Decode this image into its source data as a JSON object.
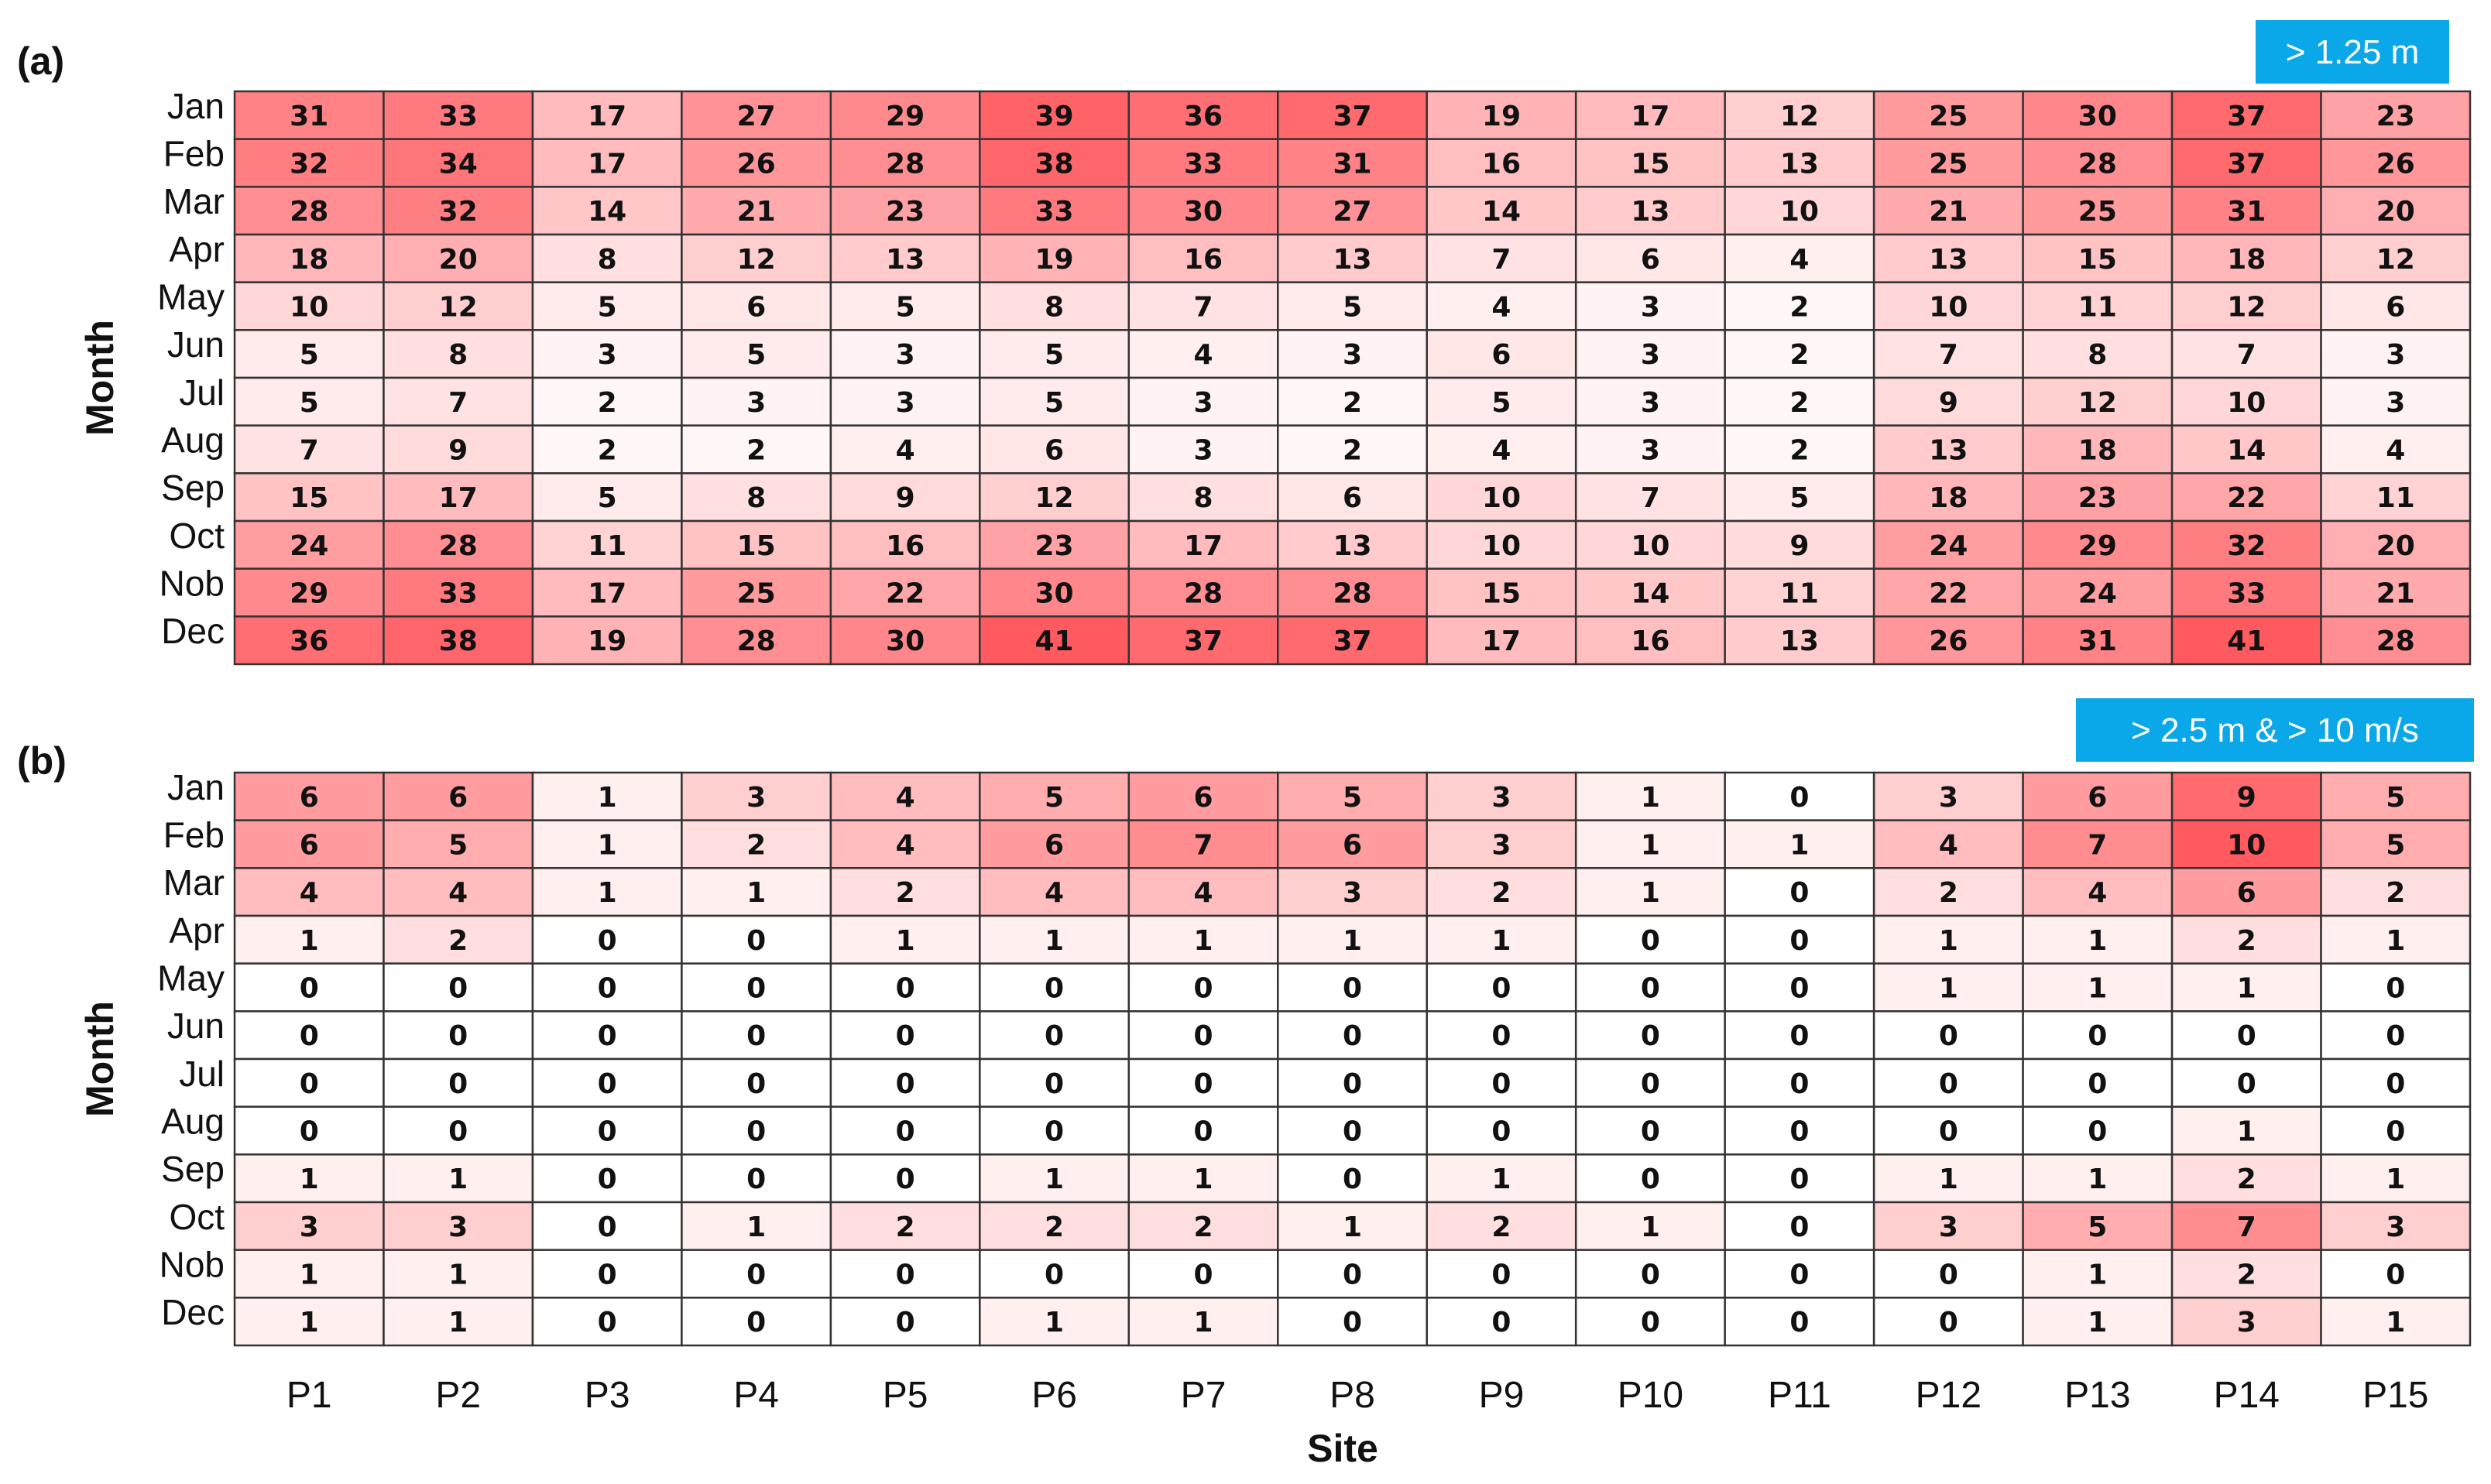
{
  "x_axis_title": "Site",
  "y_axis_title": "Month",
  "sites": [
    "P1",
    "P2",
    "P3",
    "P4",
    "P5",
    "P6",
    "P7",
    "P8",
    "P9",
    "P10",
    "P11",
    "P12",
    "P13",
    "P14",
    "P15"
  ],
  "months": [
    "Jan",
    "Feb",
    "Mar",
    "Apr",
    "May",
    "Jun",
    "Jul",
    "Aug",
    "Sep",
    "Oct",
    "Nob",
    "Dec"
  ],
  "colors": {
    "low": "#ffffff",
    "high": "#ff5a5f",
    "badge": "#0aa8e8",
    "grid": "#333333"
  },
  "chart_data": [
    {
      "type": "heatmap",
      "panel": "(a)",
      "threshold": "> 1.25 m",
      "x": [
        "P1",
        "P2",
        "P3",
        "P4",
        "P5",
        "P6",
        "P7",
        "P8",
        "P9",
        "P10",
        "P11",
        "P12",
        "P13",
        "P14",
        "P15"
      ],
      "y": [
        "Jan",
        "Feb",
        "Mar",
        "Apr",
        "May",
        "Jun",
        "Jul",
        "Aug",
        "Sep",
        "Oct",
        "Nob",
        "Dec"
      ],
      "xlabel": "Site",
      "ylabel": "Month",
      "values": [
        [
          31,
          33,
          17,
          27,
          29,
          39,
          36,
          37,
          19,
          17,
          12,
          25,
          30,
          37,
          23
        ],
        [
          32,
          34,
          17,
          26,
          28,
          38,
          33,
          31,
          16,
          15,
          13,
          25,
          28,
          37,
          26
        ],
        [
          28,
          32,
          14,
          21,
          23,
          33,
          30,
          27,
          14,
          13,
          10,
          21,
          25,
          31,
          20
        ],
        [
          18,
          20,
          8,
          12,
          13,
          19,
          16,
          13,
          7,
          6,
          4,
          13,
          15,
          18,
          12
        ],
        [
          10,
          12,
          5,
          6,
          5,
          8,
          7,
          5,
          4,
          3,
          2,
          10,
          11,
          12,
          6
        ],
        [
          5,
          8,
          3,
          5,
          3,
          5,
          4,
          3,
          6,
          3,
          2,
          7,
          8,
          7,
          3
        ],
        [
          5,
          7,
          2,
          3,
          3,
          5,
          3,
          2,
          5,
          3,
          2,
          9,
          12,
          10,
          3
        ],
        [
          7,
          9,
          2,
          2,
          4,
          6,
          3,
          2,
          4,
          3,
          2,
          13,
          18,
          14,
          4
        ],
        [
          15,
          17,
          5,
          8,
          9,
          12,
          8,
          6,
          10,
          7,
          5,
          18,
          23,
          22,
          11
        ],
        [
          24,
          28,
          11,
          15,
          16,
          23,
          17,
          13,
          10,
          10,
          9,
          24,
          29,
          32,
          20
        ],
        [
          29,
          33,
          17,
          25,
          22,
          30,
          28,
          28,
          15,
          14,
          11,
          22,
          24,
          33,
          21
        ],
        [
          36,
          38,
          19,
          28,
          30,
          41,
          37,
          37,
          17,
          16,
          13,
          26,
          31,
          41,
          28
        ]
      ]
    },
    {
      "type": "heatmap",
      "panel": "(b)",
      "threshold": "> 2.5 m & > 10 m/s",
      "x": [
        "P1",
        "P2",
        "P3",
        "P4",
        "P5",
        "P6",
        "P7",
        "P8",
        "P9",
        "P10",
        "P11",
        "P12",
        "P13",
        "P14",
        "P15"
      ],
      "y": [
        "Jan",
        "Feb",
        "Mar",
        "Apr",
        "May",
        "Jun",
        "Jul",
        "Aug",
        "Sep",
        "Oct",
        "Nob",
        "Dec"
      ],
      "xlabel": "Site",
      "ylabel": "Month",
      "values": [
        [
          6,
          6,
          1,
          3,
          4,
          5,
          6,
          5,
          3,
          1,
          0,
          3,
          6,
          9,
          5
        ],
        [
          6,
          5,
          1,
          2,
          4,
          6,
          7,
          6,
          3,
          1,
          1,
          4,
          7,
          10,
          5
        ],
        [
          4,
          4,
          1,
          1,
          2,
          4,
          4,
          3,
          2,
          1,
          0,
          2,
          4,
          6,
          2
        ],
        [
          1,
          2,
          0,
          0,
          1,
          1,
          1,
          1,
          1,
          0,
          0,
          1,
          1,
          2,
          1
        ],
        [
          0,
          0,
          0,
          0,
          0,
          0,
          0,
          0,
          0,
          0,
          0,
          1,
          1,
          1,
          0
        ],
        [
          0,
          0,
          0,
          0,
          0,
          0,
          0,
          0,
          0,
          0,
          0,
          0,
          0,
          0,
          0
        ],
        [
          0,
          0,
          0,
          0,
          0,
          0,
          0,
          0,
          0,
          0,
          0,
          0,
          0,
          0,
          0
        ],
        [
          0,
          0,
          0,
          0,
          0,
          0,
          0,
          0,
          0,
          0,
          0,
          0,
          0,
          1,
          0
        ],
        [
          1,
          1,
          0,
          0,
          0,
          1,
          1,
          0,
          1,
          0,
          0,
          1,
          1,
          2,
          1
        ],
        [
          3,
          3,
          0,
          1,
          2,
          2,
          2,
          1,
          2,
          1,
          0,
          3,
          5,
          7,
          3
        ],
        [
          1,
          1,
          0,
          0,
          0,
          0,
          0,
          0,
          0,
          0,
          0,
          0,
          1,
          2,
          0
        ],
        [
          1,
          1,
          0,
          0,
          0,
          1,
          1,
          0,
          0,
          0,
          0,
          0,
          1,
          3,
          1
        ]
      ]
    }
  ]
}
